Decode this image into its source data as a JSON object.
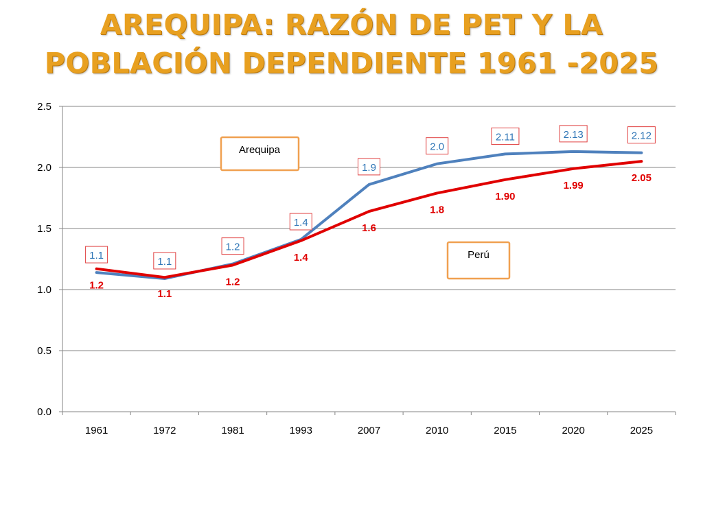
{
  "slide": {
    "title_line1": "AREQUIPA: RAZÓN DE PET Y LA",
    "title_line2": "POBLACIÓN DEPENDIENTE 1961 -2025"
  },
  "colors": {
    "title": "#E8A020",
    "arequipa": "#4F81BD",
    "peru": "#E00000",
    "label_blue": "#2E75B6",
    "annotation_box": "#F0A050"
  },
  "chart_data": {
    "type": "line",
    "categories": [
      "1961",
      "1972",
      "1981",
      "1993",
      "2007",
      "2010",
      "2015",
      "2020",
      "2025"
    ],
    "y_ticks": [
      "0.0",
      "0.5",
      "1.0",
      "1.5",
      "2.0",
      "2.5"
    ],
    "ylim": [
      0,
      2.5
    ],
    "grid": true,
    "series": [
      {
        "key": "arequipa",
        "color": "#4F81BD",
        "values": [
          1.14,
          1.09,
          1.21,
          1.41,
          1.86,
          2.03,
          2.11,
          2.13,
          2.12
        ],
        "labels": [
          "1.1",
          "1.1",
          "1.2",
          "1.4",
          "1.9",
          "2.0",
          "2.11",
          "2.13",
          "2.12"
        ]
      },
      {
        "key": "peru",
        "color": "#E00000",
        "values": [
          1.17,
          1.1,
          1.2,
          1.4,
          1.64,
          1.79,
          1.9,
          1.99,
          2.05
        ],
        "labels": [
          "1.2",
          "1.1",
          "1.2",
          "1.4",
          "1.6",
          "1.8",
          "1.90",
          "1.99",
          "2.05"
        ]
      }
    ],
    "annotations": [
      {
        "text": "Arequipa",
        "series": "arequipa"
      },
      {
        "text": "Perú",
        "series": "peru"
      }
    ]
  }
}
